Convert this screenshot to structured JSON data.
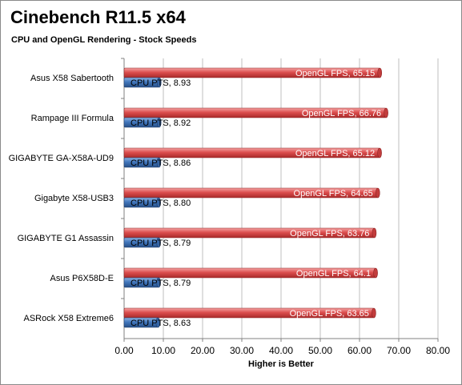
{
  "chart_data": {
    "type": "bar",
    "orientation": "horizontal",
    "title": "Cinebench R11.5 x64",
    "subtitle": "CPU and OpenGL Rendering - Stock Speeds",
    "xlabel": "Higher is Better",
    "ylabel": "",
    "xlim": [
      0,
      80
    ],
    "xticks": [
      "0.00",
      "10.00",
      "20.00",
      "30.00",
      "40.00",
      "50.00",
      "60.00",
      "70.00",
      "80.00"
    ],
    "categories": [
      "Asus X58 Sabertooth",
      "Rampage III Formula",
      "GIGABYTE GA-X58A-UD9",
      "Gigabyte X58-USB3",
      "GIGABYTE G1 Assassin",
      "Asus P6X58D-E",
      "ASRock X58 Extreme6"
    ],
    "series": [
      {
        "name": "OpenGL FPS",
        "color": "#d94a4a",
        "values": [
          65.15,
          66.76,
          65.12,
          64.65,
          63.76,
          64.1,
          63.65
        ],
        "labels": [
          "OpenGL FPS, 65.15",
          "OpenGL FPS, 66.76",
          "OpenGL FPS, 65.12",
          "OpenGL FPS, 64.65",
          "OpenGL FPS, 63.76",
          "OpenGL FPS, 64.1",
          "OpenGL FPS, 63.65"
        ]
      },
      {
        "name": "CPU PTS",
        "color": "#3f6fb0",
        "values": [
          8.93,
          8.92,
          8.86,
          8.8,
          8.79,
          8.79,
          8.63
        ],
        "labels": [
          "CPU PTS, 8.93",
          "CPU PTS, 8.92",
          "CPU PTS, 8.86",
          "CPU PTS, 8.80",
          "CPU PTS, 8.79",
          "CPU PTS, 8.79",
          "CPU PTS, 8.63"
        ]
      }
    ],
    "grid": true,
    "legend": "none"
  }
}
